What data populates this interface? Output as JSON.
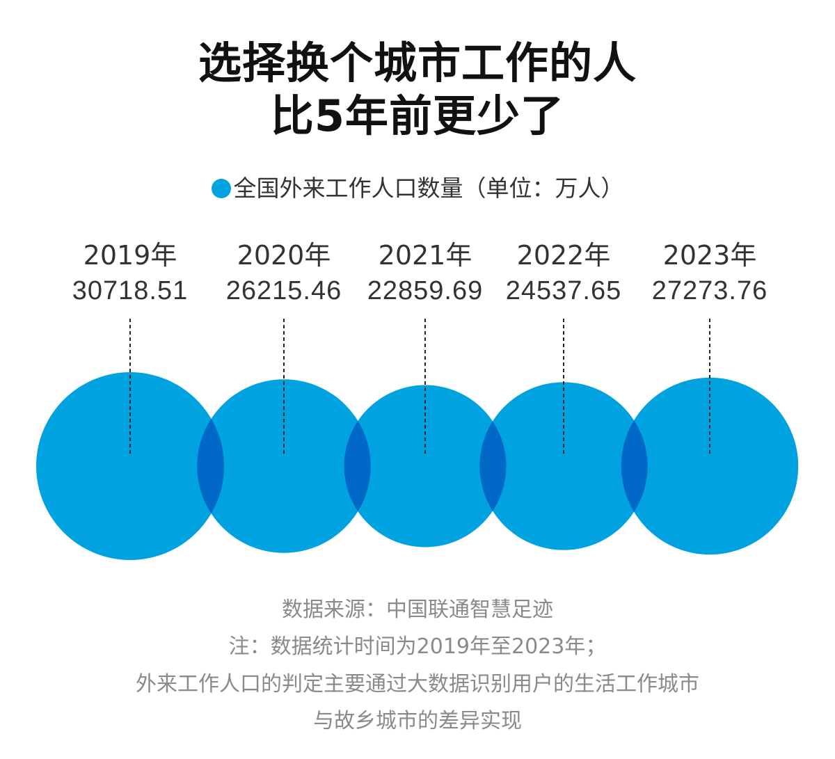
{
  "title": {
    "line1": "选择换个城市工作的人",
    "line2": "比5年前更少了"
  },
  "legend": {
    "label": "全国外来工作人口数量（单位：万人）",
    "color": "#00A3E0"
  },
  "colors": {
    "circle": "#00A3E0",
    "overlap": "#0069C8",
    "text": "#333333",
    "footer": "#8A8A8A"
  },
  "chart_data": {
    "type": "bubble",
    "title": "选择换个城市工作的人比5年前更少了",
    "series_name": "全国外来工作人口数量",
    "unit": "万人",
    "categories": [
      "2019年",
      "2020年",
      "2021年",
      "2022年",
      "2023年"
    ],
    "values": [
      "30718.51",
      "26215.46",
      "22859.69",
      "24537.65",
      "27273.76"
    ]
  },
  "footer": {
    "source": "数据来源：中国联通智慧足迹",
    "note1": "注：数据统计时间为2019年至2023年；",
    "note2": "外来工作人口的判定主要通过大数据识别用户的生活工作城市",
    "note3": "与故乡城市的差异实现"
  }
}
